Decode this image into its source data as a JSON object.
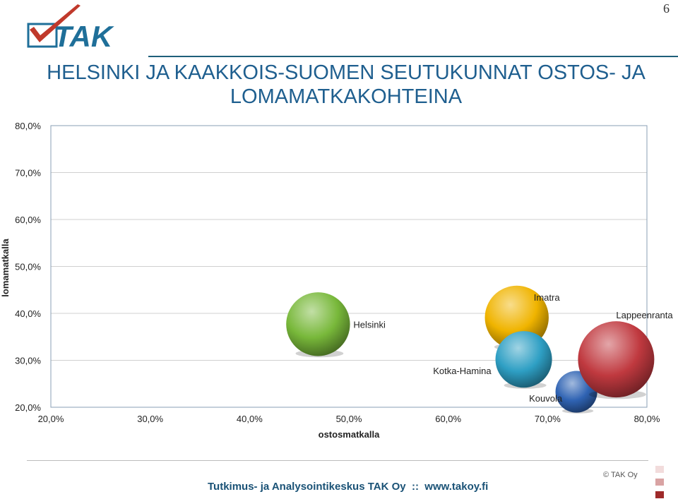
{
  "page_number": "6",
  "logo": {
    "text": "TAK"
  },
  "title": {
    "line1": "HELSINKI JA KAAKKOIS-SUOMEN SEUTUKUNNAT OSTOS- JA",
    "line2": "LOMAMATKAKOHTEINA"
  },
  "chart_data": {
    "type": "scatter",
    "subtype": "bubble",
    "xlabel": "ostosmatkalla",
    "ylabel": "lomamatkalla",
    "xlim": [
      0.2,
      0.8
    ],
    "ylim": [
      0.2,
      0.8
    ],
    "x_ticks": [
      "20,0%",
      "30,0%",
      "40,0%",
      "50,0%",
      "60,0%",
      "70,0%",
      "80,0%"
    ],
    "y_ticks": [
      "20,0%",
      "30,0%",
      "40,0%",
      "50,0%",
      "60,0%",
      "70,0%",
      "80,0%"
    ],
    "grid": "horizontal",
    "points": [
      {
        "label": "Helsinki",
        "x": 0.469,
        "y": 0.377,
        "size": 0.7,
        "color": "#78b83a"
      },
      {
        "label": "Imatra",
        "x": 0.669,
        "y": 0.391,
        "size": 0.7,
        "color": "#f0b400"
      },
      {
        "label": "Kotka-Hamina",
        "x": 0.676,
        "y": 0.302,
        "size": 0.55,
        "color": "#2e9fc4"
      },
      {
        "label": "Kouvola",
        "x": 0.729,
        "y": 0.233,
        "size": 0.3,
        "color": "#2f63b3"
      },
      {
        "label": "Lappeenranta",
        "x": 0.769,
        "y": 0.302,
        "size": 1.0,
        "color": "#c0393f"
      }
    ]
  },
  "footer": {
    "text": "Tutkimus- ja Analysointikeskus TAK Oy  ::  www.takoy.fi"
  },
  "copyright": "© TAK Oy",
  "colors": {
    "accent": "#1f5f8f",
    "logo_blue": "#1f6f99",
    "check_red": "#c0392b"
  }
}
